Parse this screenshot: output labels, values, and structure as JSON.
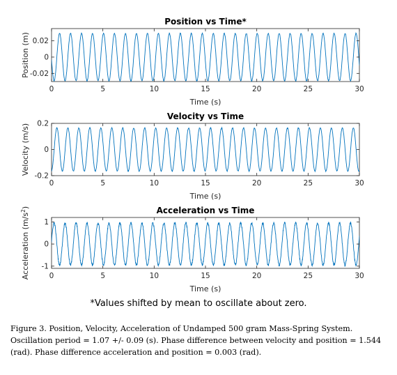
{
  "chart_data": [
    {
      "type": "line",
      "title": "Position vs Time*",
      "xlabel": "Time (s)",
      "ylabel": "Position (m)",
      "xlim": [
        0,
        30
      ],
      "ylim": [
        -0.03,
        0.035
      ],
      "xticks": [
        0,
        5,
        10,
        15,
        20,
        25,
        30
      ],
      "yticks": [
        0.02,
        0,
        -0.02
      ],
      "ytick_labels": [
        "0.02",
        "0",
        "-0.02"
      ],
      "amplitude": 0.029,
      "period": 1.07,
      "phase": 3.25,
      "noise": 0.0012,
      "line_color": "#0072BD",
      "grid": false
    },
    {
      "type": "line",
      "title": "Velocity vs Time",
      "xlabel": "Time (s)",
      "ylabel": "Velocity (m/s)",
      "xlim": [
        0,
        30
      ],
      "ylim": [
        -0.2,
        0.2
      ],
      "xticks": [
        0,
        5,
        10,
        15,
        20,
        25,
        30
      ],
      "yticks": [
        0.2,
        0,
        -0.2
      ],
      "ytick_labels": [
        "0.2",
        "0",
        "-0.2"
      ],
      "amplitude": 0.165,
      "period": 1.07,
      "phase": 4.794,
      "noise": 0.007,
      "line_color": "#0072BD",
      "grid": false
    },
    {
      "type": "line",
      "title": "Acceleration vs Time",
      "xlabel": "Time (s)",
      "ylabel": "Acceleration (m/s",
      "ylabel_sup": "2",
      "ylabel_end": ")",
      "xlim": [
        0,
        30
      ],
      "ylim": [
        -1.1,
        1.2
      ],
      "xticks": [
        0,
        5,
        10,
        15,
        20,
        25,
        30
      ],
      "yticks": [
        1,
        0,
        -1
      ],
      "ytick_labels": [
        "1",
        "0",
        "-1"
      ],
      "amplitude": 0.95,
      "period": 1.07,
      "phase": 0.11,
      "noise": 0.11,
      "line_color": "#0072BD",
      "grid": false
    }
  ],
  "note": "*Values shifted by mean to oscillate about zero.",
  "caption": "Figure 3. Position, Velocity, Acceleration of Undamped 500 gram Mass-Spring System. Oscillation period = 1.07 +/- 0.09 (s). Phase difference between velocity and position = 1.544 (rad). Phase difference acceleration and position = 0.003 (rad)."
}
